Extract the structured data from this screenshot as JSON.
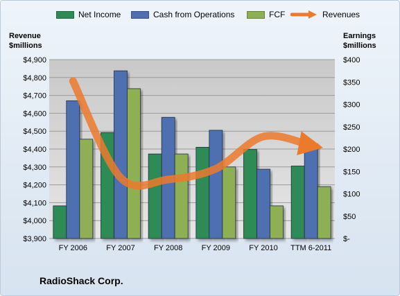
{
  "chart_data": {
    "type": "bar",
    "categories": [
      "FY 2006",
      "FY 2007",
      "FY 2008",
      "FY 2009",
      "FY 2010",
      "TTM 6-2011"
    ],
    "series": [
      {
        "name": "Net Income",
        "axis": "right",
        "color": "#2e8b57",
        "values": [
          73,
          237,
          189,
          204,
          199,
          162
        ]
      },
      {
        "name": "Cash from Operations",
        "axis": "right",
        "color": "#4f6fb0",
        "values": [
          308,
          375,
          271,
          242,
          155,
          212
        ]
      },
      {
        "name": "FCF",
        "axis": "right",
        "color": "#8faf55",
        "values": [
          222,
          335,
          189,
          160,
          73,
          116
        ]
      },
      {
        "name": "Revenues",
        "axis": "left",
        "type": "line",
        "color": "#ec7a2d",
        "values": [
          4780,
          4240,
          4230,
          4290,
          4470,
          4420
        ]
      }
    ],
    "left_axis": {
      "title_lines": [
        "Revenue",
        "$millions"
      ],
      "range": [
        3900,
        4900
      ],
      "ticks": [
        "$3,900",
        "$4,000",
        "$4,100",
        "$4,200",
        "$4,300",
        "$4,400",
        "$4,500",
        "$4,600",
        "$4,700",
        "$4,800",
        "$4,900"
      ]
    },
    "right_axis": {
      "title_lines": [
        "Earnings",
        "$millions"
      ],
      "range": [
        0,
        400
      ],
      "ticks": [
        "$-",
        "$50",
        "$100",
        "$150",
        "$200",
        "$250",
        "$300",
        "$350",
        "$400"
      ]
    },
    "legend_position": "top",
    "grid": true
  },
  "caption": "RadioShack Corp."
}
